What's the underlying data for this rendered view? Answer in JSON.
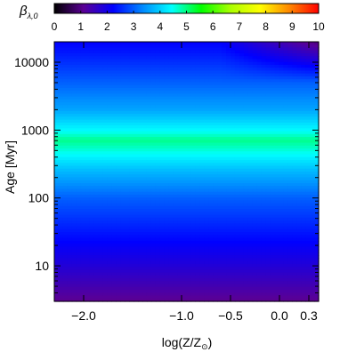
{
  "chart_data": {
    "type": "heatmap",
    "colorbar": {
      "label_main": "β",
      "label_sub": "λ,0",
      "range": [
        0,
        10
      ],
      "ticks": [
        0,
        1,
        2,
        3,
        4,
        5,
        6,
        7,
        8,
        9,
        10
      ],
      "palette": [
        "#000000",
        "#5a0095",
        "#0000ff",
        "#0088ff",
        "#00ffff",
        "#00ff00",
        "#aaff00",
        "#ffff00",
        "#ff8800",
        "#ff0000"
      ]
    },
    "xlabel": "log(Z/Z",
    "xlabel_suffix": "⊙",
    "xlabel_close": ")",
    "ylabel_prefix": "Age",
    "ylabel_unit": "[Myr]",
    "x_axis": {
      "range": [
        -2.3,
        0.4
      ],
      "scale": "linear",
      "ticks": [
        {
          "value": -2.0,
          "label": "-2.0"
        },
        {
          "value": -1.0,
          "label": "-1.0"
        },
        {
          "value": -0.5,
          "label": "-0.5"
        },
        {
          "value": 0.0,
          "label": "0.0"
        },
        {
          "value": 0.3,
          "label": "0.3"
        }
      ]
    },
    "y_axis": {
      "range": [
        3,
        20000
      ],
      "scale": "log",
      "ticks": [
        {
          "value": 10,
          "label": "10"
        },
        {
          "value": 100,
          "label": "100"
        },
        {
          "value": 1000,
          "label": "1000"
        },
        {
          "value": 10000,
          "label": "10000"
        }
      ]
    },
    "log_age_profile": [
      [
        0.5,
        1.1
      ],
      [
        0.7,
        1.4
      ],
      [
        1.0,
        1.8
      ],
      [
        1.5,
        2.4
      ],
      [
        2.0,
        3.0
      ],
      [
        2.4,
        3.8
      ],
      [
        2.7,
        4.6
      ],
      [
        2.85,
        4.95
      ],
      [
        3.0,
        4.4
      ],
      [
        3.3,
        3.6
      ],
      [
        3.7,
        3.0
      ],
      [
        4.0,
        2.6
      ],
      [
        4.3,
        2.2
      ]
    ],
    "old_metal_rich_drop": 1.3
  }
}
